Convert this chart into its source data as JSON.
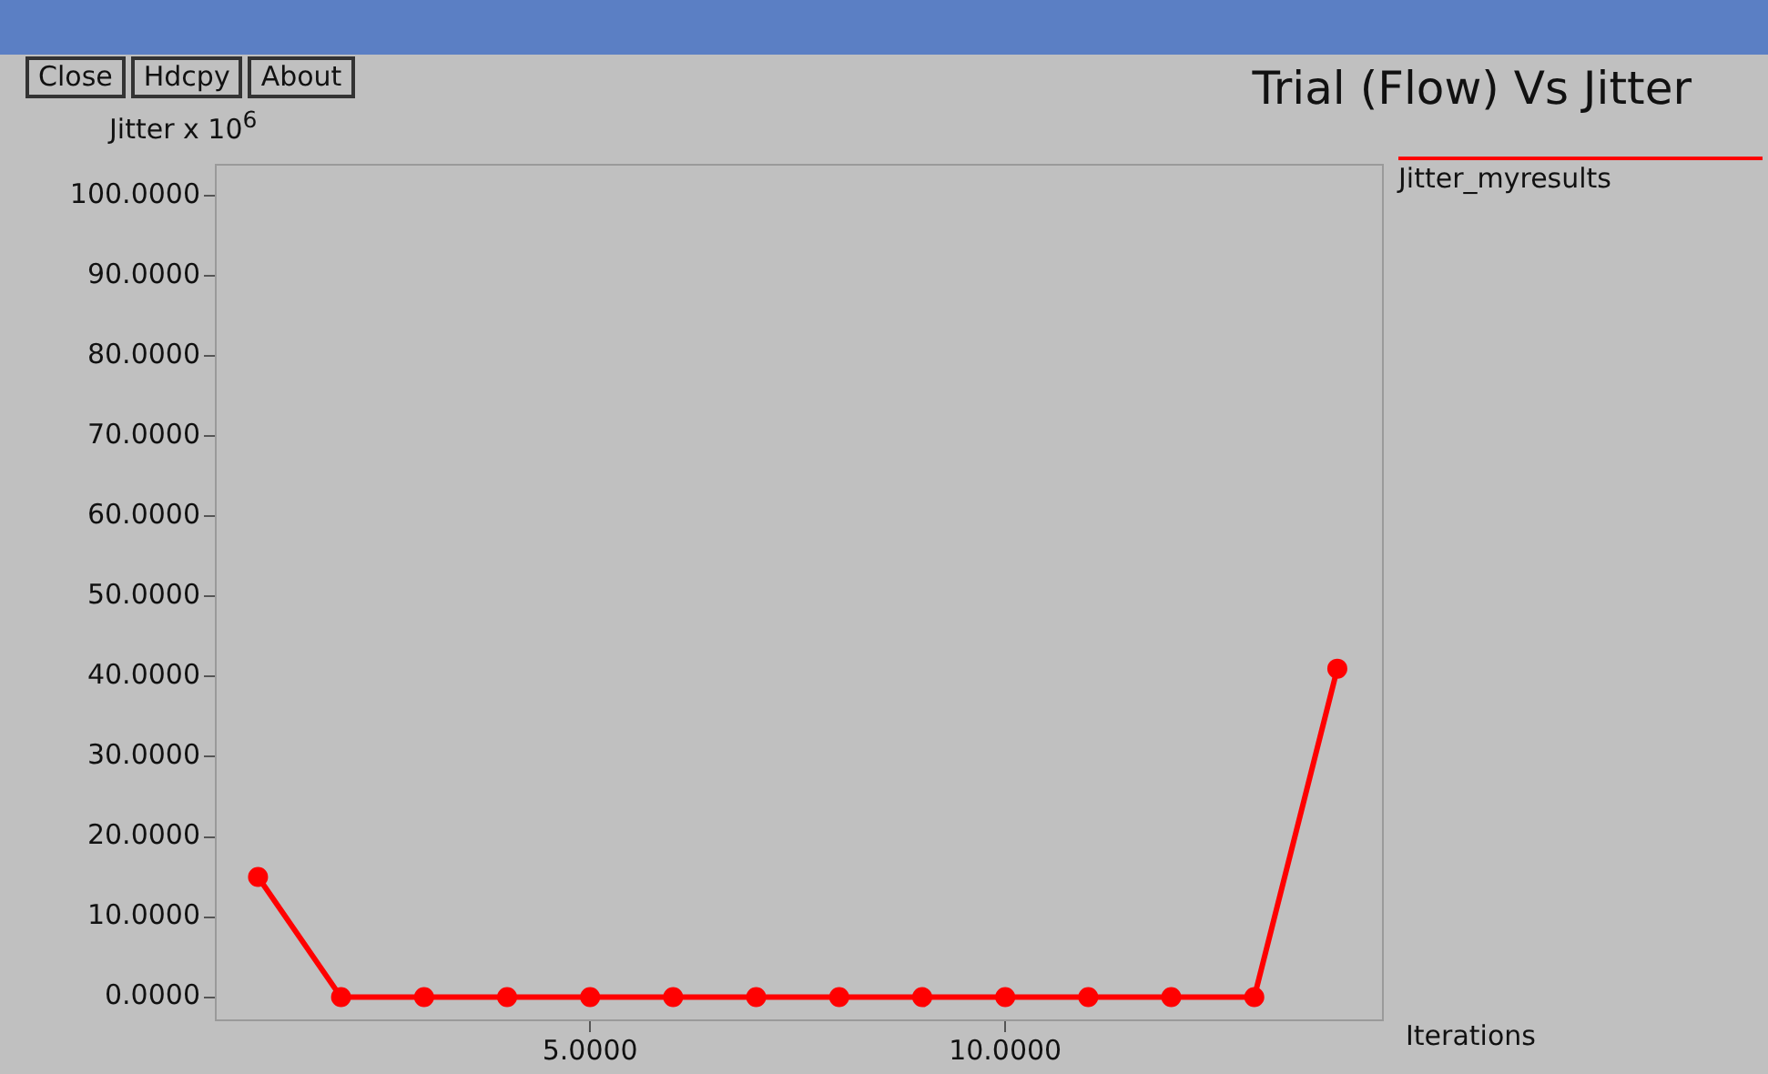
{
  "chart_data": {
    "type": "line",
    "title": "Trial (Flow) Vs Jitter",
    "xlabel": "Iterations",
    "ylabel": "Jitter x 10$^{6}$",
    "annotations": [
      "Close",
      "Hdcpy",
      "About"
    ],
    "x": [
      1,
      2,
      3,
      4,
      5,
      6,
      7,
      8,
      9,
      10,
      11,
      12,
      13,
      14
    ],
    "series": [
      {
        "name": "Jitter_myresults",
        "color": "#ff0000",
        "values": [
          15,
          0,
          0,
          0,
          0,
          0,
          0,
          0,
          0,
          0,
          0,
          0,
          0,
          41
        ]
      }
    ],
    "xlim": [
      0.48,
      14.56
    ],
    "ylim": [
      -3,
      104
    ],
    "xticks": [
      {
        "value": 5,
        "label": "5.0000"
      },
      {
        "value": 10,
        "label": "10.0000"
      }
    ],
    "yticks": [
      {
        "value": 0,
        "label": "0.0000"
      },
      {
        "value": 10,
        "label": "10.0000"
      },
      {
        "value": 20,
        "label": "20.0000"
      },
      {
        "value": 30,
        "label": "30.0000"
      },
      {
        "value": 40,
        "label": "40.0000"
      },
      {
        "value": 50,
        "label": "50.0000"
      },
      {
        "value": 60,
        "label": "60.0000"
      },
      {
        "value": 70,
        "label": "70.0000"
      },
      {
        "value": 80,
        "label": "80.0000"
      },
      {
        "value": 90,
        "label": "90.0000"
      },
      {
        "value": 100,
        "label": "100.0000"
      }
    ],
    "grid": false,
    "legend": "top right",
    "marker": "circle",
    "line_style": "solid"
  }
}
